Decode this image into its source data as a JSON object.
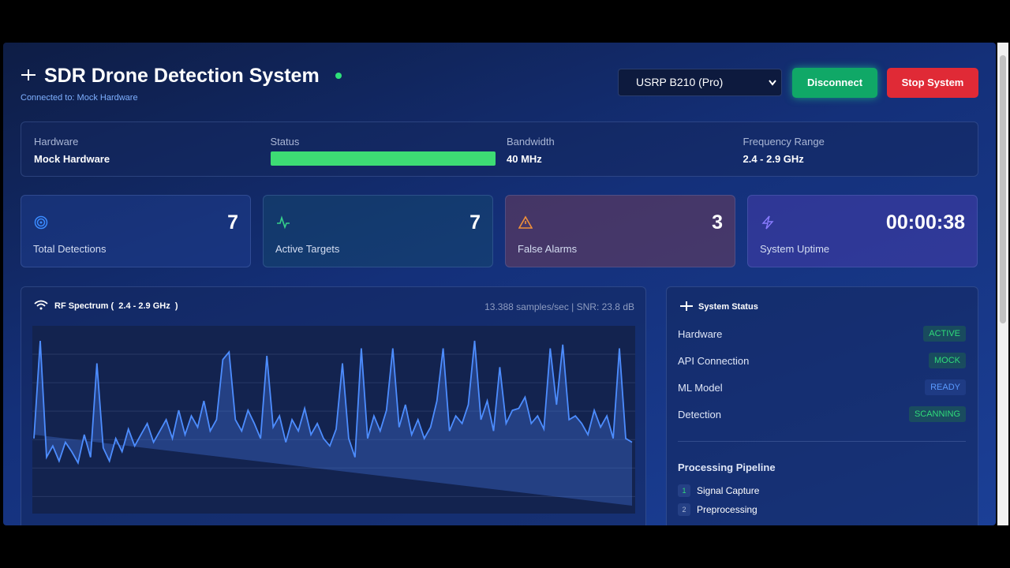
{
  "header": {
    "title": "SDR Drone Detection System",
    "connection": "Connected to: Mock Hardware",
    "device": "USRP B210 (Pro)",
    "buttons": [
      "Disconnect",
      "Stop System"
    ]
  },
  "info": [
    {
      "label": "Hardware",
      "value": "Mock Hardware"
    },
    {
      "label": "Status"
    },
    {
      "label": "Bandwidth",
      "value": "40 MHz"
    },
    {
      "label": "Frequency Range",
      "value": "2.4 - 2.9 GHz"
    }
  ],
  "stats": [
    {
      "value": 7,
      "label": "Total Detections"
    },
    {
      "value": 7,
      "label": "Active Targets"
    },
    {
      "value": 3,
      "label": "False Alarms"
    },
    {
      "value": "00:00:38",
      "label": "System Uptime"
    }
  ],
  "spectrum": {
    "title": "RF Spectrum (  2.4 - 2.9 GHz  )",
    "rate": "13.388 samples/sec | SNR: 23.8 dB",
    "ylim": [
      0,
      100
    ],
    "values": [
      40,
      92,
      30,
      36,
      28,
      38,
      33,
      27,
      42,
      30,
      80,
      35,
      28,
      40,
      33,
      45,
      36,
      42,
      48,
      38,
      44,
      50,
      40,
      55,
      42,
      52,
      46,
      60,
      44,
      50,
      82,
      86,
      50,
      44,
      55,
      48,
      40,
      84,
      46,
      52,
      38,
      50,
      44,
      56,
      42,
      48,
      40,
      36,
      45,
      80,
      40,
      30,
      88,
      40,
      52,
      44,
      55,
      88,
      46,
      58,
      42,
      50,
      40,
      46,
      60,
      88,
      44,
      52,
      48,
      58,
      92,
      50,
      60,
      44,
      78,
      48,
      55,
      56,
      62,
      48,
      52,
      45,
      88,
      58,
      90,
      50,
      52,
      48,
      42,
      55,
      46,
      52,
      40,
      88,
      40,
      38
    ]
  },
  "system_status": {
    "title": "System Status",
    "rows": [
      {
        "label": "Hardware",
        "badge": "ACTIVE"
      },
      {
        "label": "API Connection",
        "badge": "MOCK"
      },
      {
        "label": "ML Model",
        "badge": "READY"
      },
      {
        "label": "Detection",
        "badge": "SCANNING"
      }
    ],
    "pipeline_title": "Processing Pipeline",
    "steps": [
      {
        "n": 1,
        "label": "Signal Capture"
      },
      {
        "n": 2,
        "label": "Preprocessing"
      }
    ]
  }
}
